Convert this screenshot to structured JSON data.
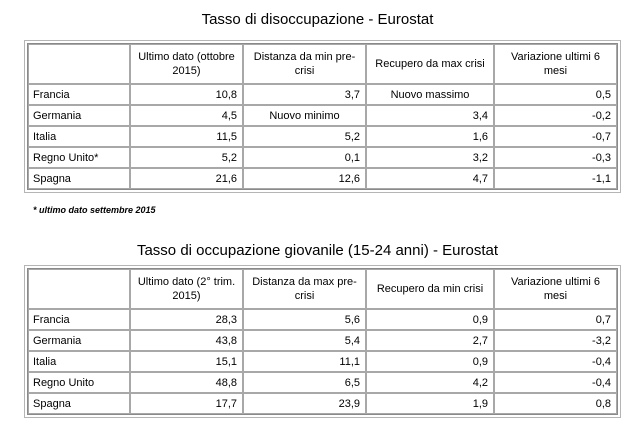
{
  "table1": {
    "title": "Tasso di disoccupazione - Eurostat",
    "headers": [
      "",
      "Ultimo dato (ottobre 2015)",
      "Distanza da min pre-crisi",
      "Recupero da max crisi",
      "Variazione ultimi 6 mesi"
    ],
    "rows": [
      {
        "country": "Francia",
        "last": "10,8",
        "dist": "3,7",
        "recovery": "Nuovo massimo",
        "change": "0,5"
      },
      {
        "country": "Germania",
        "last": "4,5",
        "dist": "Nuovo minimo",
        "recovery": "3,4",
        "change": "-0,2"
      },
      {
        "country": "Italia",
        "last": "11,5",
        "dist": "5,2",
        "recovery": "1,6",
        "change": "-0,7"
      },
      {
        "country": "Regno Unito*",
        "last": "5,2",
        "dist": "0,1",
        "recovery": "3,2",
        "change": "-0,3"
      },
      {
        "country": "Spagna",
        "last": "21,6",
        "dist": "12,6",
        "recovery": "4,7",
        "change": "-1,1"
      }
    ]
  },
  "footnote": "* ultimo dato settembre 2015",
  "table2": {
    "title": "Tasso di occupazione giovanile (15-24 anni) - Eurostat",
    "headers": [
      "",
      "Ultimo dato (2° trim. 2015)",
      "Distanza da max pre-crisi",
      "Recupero da min crisi",
      "Variazione ultimi 6 mesi"
    ],
    "rows": [
      {
        "country": "Francia",
        "last": "28,3",
        "dist": "5,6",
        "recovery": "0,9",
        "change": "0,7"
      },
      {
        "country": "Germania",
        "last": "43,8",
        "dist": "5,4",
        "recovery": "2,7",
        "change": "-3,2"
      },
      {
        "country": "Italia",
        "last": "15,1",
        "dist": "11,1",
        "recovery": "0,9",
        "change": "-0,4"
      },
      {
        "country": "Regno Unito",
        "last": "48,8",
        "dist": "6,5",
        "recovery": "4,2",
        "change": "-0,4"
      },
      {
        "country": "Spagna",
        "last": "17,7",
        "dist": "23,9",
        "recovery": "1,9",
        "change": "0,8"
      }
    ]
  }
}
